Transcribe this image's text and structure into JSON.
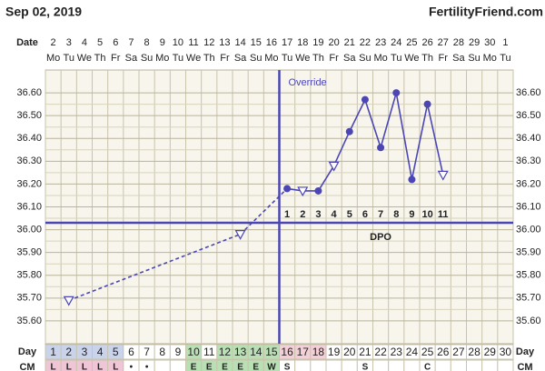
{
  "header": {
    "date": "Sep 02, 2019",
    "site": "FertilityFriend.com"
  },
  "chart_data": {
    "type": "line",
    "date_row_label": "Date",
    "dates": [
      2,
      3,
      4,
      5,
      6,
      7,
      8,
      9,
      10,
      11,
      12,
      13,
      14,
      15,
      16,
      17,
      18,
      19,
      20,
      21,
      22,
      23,
      24,
      25,
      26,
      27,
      28,
      29,
      30,
      1
    ],
    "weekdays": [
      "Mo",
      "Tu",
      "We",
      "Th",
      "Fr",
      "Sa",
      "Su",
      "Mo",
      "Tu",
      "We",
      "Th",
      "Fr",
      "Sa",
      "Su",
      "Mo",
      "Tu",
      "We",
      "Th",
      "Fr",
      "Sa",
      "Su",
      "Mo",
      "Tu",
      "We",
      "Th",
      "Fr",
      "Sa",
      "Su",
      "Mo",
      "Tu"
    ],
    "day_row_label": "Day",
    "days": [
      1,
      2,
      3,
      4,
      5,
      6,
      7,
      8,
      9,
      10,
      11,
      12,
      13,
      14,
      15,
      16,
      17,
      18,
      19,
      20,
      21,
      22,
      23,
      24,
      25,
      26,
      27,
      28,
      29,
      30
    ],
    "day_colors": [
      "#c9d3ec",
      "#c9d3ec",
      "#c9d3ec",
      "#c9d3ec",
      "#c9d3ec",
      null,
      null,
      null,
      null,
      "#b9e0b4",
      null,
      "#b9e0b4",
      "#b9e0b4",
      "#b9e0b4",
      "#b9e0b4",
      "#f3d0d8",
      "#f3d0d8",
      "#f3d0d8",
      null,
      null,
      null,
      null,
      null,
      null,
      null,
      null,
      null,
      null,
      null,
      null
    ],
    "cm_row_label": "CM",
    "cm": [
      "L",
      "L",
      "L",
      "L",
      "L",
      "•",
      "•",
      null,
      null,
      "E",
      "E",
      "E",
      "E",
      "E",
      "W",
      "S",
      null,
      null,
      null,
      null,
      "S",
      null,
      null,
      null,
      "C",
      null,
      null,
      null,
      null,
      null
    ],
    "cm_colors": [
      "#f0c6d6",
      "#f0c6d6",
      "#f0c6d6",
      "#f0c6d6",
      "#f0c6d6",
      null,
      null,
      null,
      null,
      "#b9e0b4",
      "#b9e0b4",
      "#b9e0b4",
      "#b9e0b4",
      "#b9e0b4",
      "#b9e0b4",
      null,
      null,
      null,
      null,
      null,
      null,
      null,
      null,
      null,
      null,
      null,
      null,
      null,
      null,
      null
    ],
    "xlim": [
      0.5,
      30.5
    ],
    "ylim": [
      35.5,
      36.7
    ],
    "yticks": [
      {
        "value": 35.6,
        "label": "35.60"
      },
      {
        "value": 35.7,
        "label": "35.70"
      },
      {
        "value": 35.8,
        "label": "35.80"
      },
      {
        "value": 35.9,
        "label": "35.90"
      },
      {
        "value": 36.0,
        "label": "36.00"
      },
      {
        "value": 36.1,
        "label": "36.10"
      },
      {
        "value": 36.2,
        "label": "36.20"
      },
      {
        "value": 36.3,
        "label": "36.30"
      },
      {
        "value": 36.4,
        "label": "36.40"
      },
      {
        "value": 36.5,
        "label": "36.50"
      },
      {
        "value": 36.6,
        "label": "36.60"
      }
    ],
    "series": [
      {
        "name": "Temperature",
        "color": "#4b46b4",
        "x": [
          2,
          13,
          16,
          17,
          18,
          19,
          20,
          21,
          22,
          23,
          24,
          25,
          26
        ],
        "values": [
          35.69,
          35.98,
          36.18,
          36.17,
          36.17,
          36.28,
          36.43,
          36.57,
          36.36,
          36.6,
          36.22,
          36.55,
          36.24
        ],
        "open": [
          true,
          true,
          false,
          true,
          false,
          true,
          false,
          false,
          false,
          false,
          false,
          false,
          true
        ]
      }
    ],
    "coverline": 36.03,
    "ovulation_day": 15,
    "override_label": "Override",
    "dpo_label": "DPO",
    "dpo": [
      null,
      null,
      null,
      null,
      null,
      null,
      null,
      null,
      null,
      null,
      null,
      null,
      null,
      null,
      null,
      1,
      2,
      3,
      4,
      5,
      6,
      7,
      8,
      9,
      10,
      11,
      null,
      null,
      null,
      null
    ]
  }
}
